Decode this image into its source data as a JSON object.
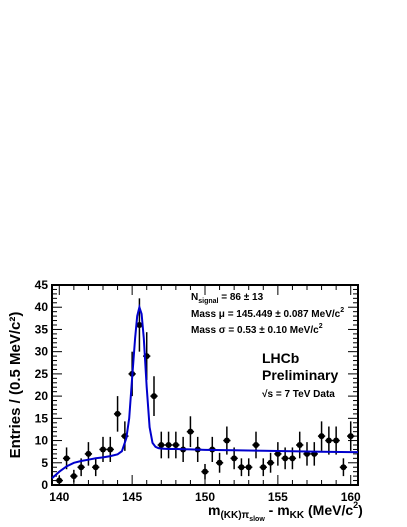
{
  "chart_data": {
    "type": "scatter",
    "title": "",
    "xlabel": {
      "main": "m",
      "sub": "(KK)π",
      "subsub": "slow",
      "mid": " - m",
      "sub2": "KK",
      "unit": " (MeV/c",
      "sup": "2",
      "close": ")"
    },
    "ylabel": "Entries / (0.5 MeV/c²)",
    "xlim": [
      139.5,
      160.5
    ],
    "ylim": [
      0,
      45
    ],
    "x_ticks": [
      140,
      145,
      150,
      155,
      160
    ],
    "y_ticks": [
      0,
      5,
      10,
      15,
      20,
      25,
      30,
      35,
      40,
      45
    ],
    "annotations": {
      "nsignal": {
        "label": "N",
        "sub": "signal",
        "value": " = 86 ± 13"
      },
      "mass_mu": {
        "text": "Mass μ = 145.449 ± 0.087 MeV/c",
        "sup": "2"
      },
      "mass_sigma": {
        "text": "Mass σ = 0.53 ± 0.10 MeV/c",
        "sup": "2"
      },
      "experiment": "LHCb",
      "status": "Preliminary",
      "energy": "√s = 7 TeV Data"
    },
    "colors": {
      "data": "#000000",
      "fit": "#0000cc",
      "frame": "#000000"
    },
    "series": [
      {
        "kind": "data-points",
        "x": [
          140.0,
          140.5,
          141.0,
          141.5,
          142.0,
          142.5,
          143.0,
          143.5,
          144.0,
          144.5,
          145.0,
          145.5,
          146.0,
          146.5,
          147.0,
          147.5,
          148.0,
          148.5,
          149.0,
          149.5,
          150.0,
          150.5,
          151.0,
          151.5,
          152.0,
          152.5,
          153.0,
          153.5,
          154.0,
          154.5,
          155.0,
          155.5,
          156.0,
          156.5,
          157.0,
          157.5,
          158.0,
          158.5,
          159.0,
          159.5,
          160.0
        ],
        "y": [
          1,
          6,
          2,
          4,
          7,
          4,
          8,
          8,
          16,
          11,
          25,
          36,
          29,
          20,
          9,
          9,
          9,
          8,
          12,
          8,
          3,
          8,
          5,
          10,
          6,
          4,
          4,
          9,
          4,
          5,
          7,
          6,
          6,
          9,
          7,
          7,
          11,
          10,
          10,
          4,
          11
        ]
      },
      {
        "kind": "fit-curve",
        "x": [
          139.5,
          140,
          140.5,
          141,
          141.5,
          142,
          142.5,
          143,
          143.5,
          144,
          144.3,
          144.6,
          144.8,
          145,
          145.2,
          145.35,
          145.5,
          145.65,
          145.8,
          146,
          146.2,
          146.4,
          146.6,
          146.8,
          147,
          147.5,
          148,
          149,
          150,
          152,
          154,
          156,
          158,
          160,
          160.5
        ],
        "y": [
          1.5,
          3,
          4.2,
          5,
          5.4,
          5.7,
          6,
          6.2,
          6.5,
          6.9,
          7.6,
          10.5,
          15,
          24,
          33,
          38,
          40,
          38.5,
          33,
          22,
          13,
          9.5,
          8.6,
          8.3,
          8.2,
          8.1,
          8.1,
          8,
          7.9,
          7.8,
          7.7,
          7.6,
          7.5,
          7.4,
          7.4
        ]
      }
    ],
    "grid": false,
    "legend": "none"
  }
}
